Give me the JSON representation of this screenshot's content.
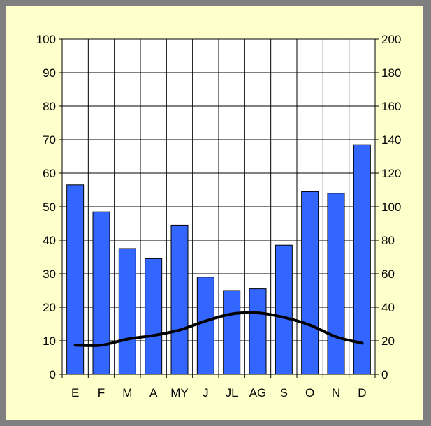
{
  "chart_data": {
    "type": "bar",
    "categories": [
      "E",
      "F",
      "M",
      "A",
      "MY",
      "J",
      "JL",
      "AG",
      "S",
      "O",
      "N",
      "D"
    ],
    "series": [
      {
        "type": "bar",
        "axis": "right",
        "values": [
          113,
          97,
          75,
          69,
          89,
          58,
          50,
          51,
          77,
          109,
          108,
          137
        ]
      },
      {
        "type": "line",
        "axis": "left",
        "values": [
          8.7,
          8.7,
          10.5,
          11.6,
          13.2,
          15.9,
          18.0,
          18.3,
          17.0,
          14.7,
          11.2,
          9.3
        ]
      }
    ],
    "left_axis": {
      "ylim": [
        0,
        100
      ],
      "ticks": [
        "0",
        "10",
        "20",
        "30",
        "40",
        "50",
        "60",
        "70",
        "80",
        "90",
        "100"
      ]
    },
    "right_axis": {
      "ylim": [
        0,
        200
      ],
      "ticks": [
        "0",
        "20",
        "40",
        "60",
        "80",
        "100",
        "120",
        "140",
        "160",
        "180",
        "200"
      ]
    },
    "grid": true,
    "legend": "none",
    "colors": {
      "bar": "#3366ff",
      "line": "#000000",
      "background": "#ffffcc",
      "frame": "#7f7f7f",
      "plot": "#ffffff"
    }
  }
}
